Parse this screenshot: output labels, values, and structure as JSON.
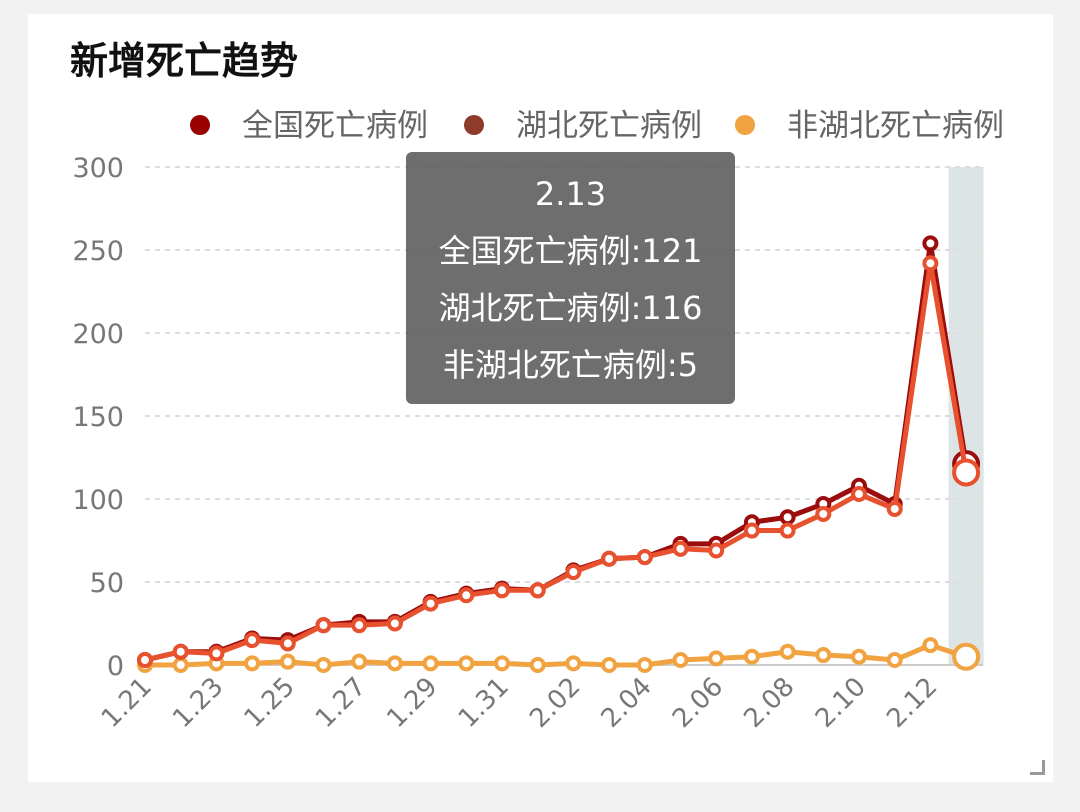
{
  "chart_data": {
    "type": "line",
    "title": "新增死亡趋势",
    "categories": [
      "1.21",
      "1.22",
      "1.23",
      "1.24",
      "1.25",
      "1.26",
      "1.27",
      "1.28",
      "1.29",
      "1.30",
      "1.31",
      "2.01",
      "2.02",
      "2.03",
      "2.04",
      "2.05",
      "2.06",
      "2.07",
      "2.08",
      "2.09",
      "2.10",
      "2.11",
      "2.12",
      "2.13"
    ],
    "tick_labels": [
      "1.21",
      "1.23",
      "1.25",
      "1.27",
      "1.29",
      "1.31",
      "2.02",
      "2.04",
      "2.06",
      "2.08",
      "2.10",
      "2.12"
    ],
    "ylim": [
      0,
      300
    ],
    "yticks": [
      "0",
      "50",
      "100",
      "150",
      "200",
      "250",
      "300"
    ],
    "grid": true,
    "legend_position": "top",
    "series": [
      {
        "name": "全国死亡病例",
        "color": "#9b0c0c",
        "legend_color": "#990000",
        "values": [
          3,
          8,
          8,
          16,
          15,
          24,
          26,
          26,
          38,
          43,
          46,
          45,
          57,
          64,
          65,
          73,
          73,
          86,
          89,
          97,
          108,
          97,
          254,
          121
        ]
      },
      {
        "name": "湖北死亡病例",
        "color": "#e8512e",
        "legend_color": "#8e3b2a",
        "values": [
          3,
          8,
          7,
          15,
          13,
          24,
          24,
          25,
          37,
          42,
          45,
          45,
          56,
          64,
          65,
          70,
          69,
          81,
          81,
          91,
          103,
          94,
          242,
          116
        ]
      },
      {
        "name": "非湖北死亡病例",
        "color": "#f0a340",
        "legend_color": "#f0a340",
        "values": [
          0,
          0,
          1,
          1,
          2,
          0,
          2,
          1,
          1,
          1,
          1,
          0,
          1,
          0,
          0,
          3,
          4,
          5,
          8,
          6,
          5,
          3,
          12,
          5
        ]
      }
    ],
    "tooltip": {
      "title": "2.13",
      "lines": [
        "全国死亡病例:121",
        "湖北死亡病例:116",
        "非湖北死亡病例:5"
      ]
    },
    "highlight_category": "2.13"
  }
}
